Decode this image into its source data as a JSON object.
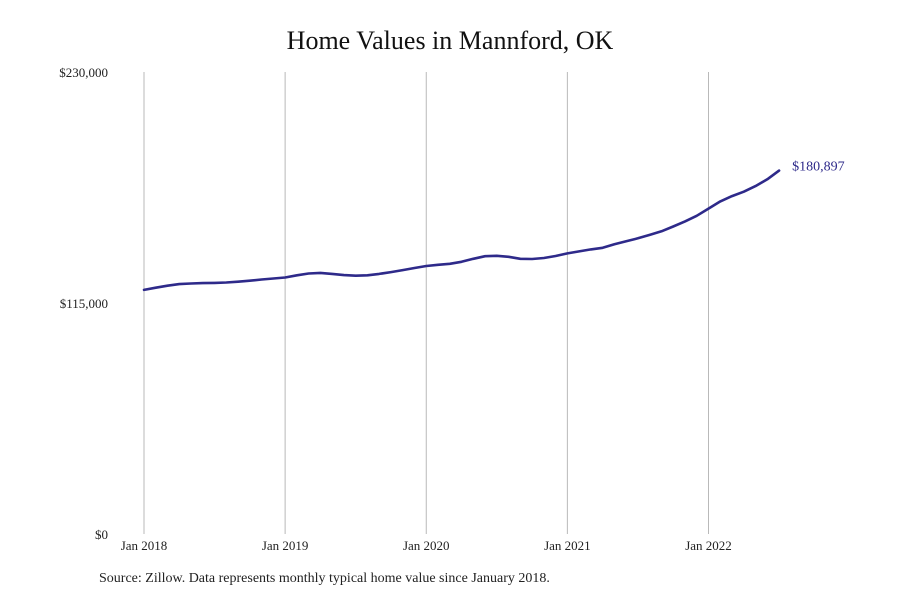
{
  "title": "Home Values in Mannford, OK",
  "source": "Source: Zillow. Data represents monthly typical home value since January 2018.",
  "colors": {
    "line": "#2e2a8a",
    "grid": "#b9b9b9"
  },
  "chart_data": {
    "type": "line",
    "title": "Home Values in Mannford, OK",
    "xlabel": "",
    "ylabel": "",
    "ylim": [
      0,
      230000
    ],
    "xlim": [
      "2018-01",
      "2022-10"
    ],
    "y_ticks": [
      {
        "value": 0,
        "label": "$0"
      },
      {
        "value": 115000,
        "label": "$115,000"
      },
      {
        "value": 230000,
        "label": "$230,000"
      }
    ],
    "x_ticks": [
      {
        "value": "2018-01",
        "label": "Jan 2018"
      },
      {
        "value": "2019-01",
        "label": "Jan 2019"
      },
      {
        "value": "2020-01",
        "label": "Jan 2020"
      },
      {
        "value": "2021-01",
        "label": "Jan 2021"
      },
      {
        "value": "2022-01",
        "label": "Jan 2022"
      }
    ],
    "grid": "vertical",
    "end_label": "$180,897",
    "series": [
      {
        "x": [
          "2018-01",
          "2018-02",
          "2018-03",
          "2018-04",
          "2018-05",
          "2018-06",
          "2018-07",
          "2018-08",
          "2018-09",
          "2018-10",
          "2018-11",
          "2018-12",
          "2019-01",
          "2019-02",
          "2019-03",
          "2019-04",
          "2019-05",
          "2019-06",
          "2019-07",
          "2019-08",
          "2019-09",
          "2019-10",
          "2019-11",
          "2019-12",
          "2020-01",
          "2020-02",
          "2020-03",
          "2020-04",
          "2020-05",
          "2020-06",
          "2020-07",
          "2020-08",
          "2020-09",
          "2020-10",
          "2020-11",
          "2020-12",
          "2021-01",
          "2021-02",
          "2021-03",
          "2021-04",
          "2021-05",
          "2021-06",
          "2021-07",
          "2021-08",
          "2021-09",
          "2021-10",
          "2021-11",
          "2021-12",
          "2022-01",
          "2022-02",
          "2022-03",
          "2022-04",
          "2022-05",
          "2022-06",
          "2022-07"
        ],
        "values": [
          121500,
          122600,
          123600,
          124400,
          124700,
          124900,
          125000,
          125200,
          125600,
          126100,
          126700,
          127200,
          127700,
          128800,
          129700,
          130000,
          129500,
          128900,
          128600,
          128800,
          129500,
          130400,
          131400,
          132400,
          133400,
          134000,
          134500,
          135500,
          137000,
          138300,
          138500,
          138000,
          137000,
          136900,
          137400,
          138400,
          139700,
          140700,
          141700,
          142500,
          144200,
          145700,
          147200,
          148900,
          150700,
          153100,
          155600,
          158400,
          162000,
          165600,
          168200,
          170400,
          173200,
          176600,
          180897
        ]
      }
    ]
  }
}
